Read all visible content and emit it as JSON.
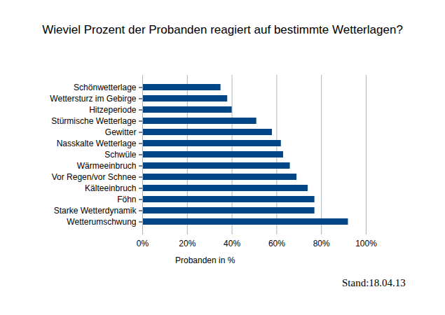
{
  "chart_data": {
    "type": "bar",
    "orientation": "horizontal",
    "title": "Wieviel Prozent der Probanden reagiert auf bestimmte Wetterlagen?",
    "x_label": "Probanden in %",
    "caption": "Stand:18.04.13",
    "categories": [
      "Schönwetterlage",
      "Wettersturz im Gebirge",
      "Hitzeperiode",
      "Stürmische Wetterlage",
      "Gewitter",
      "Nasskalte Wetterlage",
      "Schwüle",
      "Wärmeeinbruch",
      "Vor Regen/vor Schnee",
      "Kälteeinbruch",
      "Föhn",
      "Starke Wetterdynamik",
      "Wetterumschwung"
    ],
    "values": [
      35,
      38,
      40,
      51,
      58,
      62,
      63,
      66,
      69,
      74,
      77,
      77,
      92
    ],
    "color": "#004586",
    "xlim": [
      0,
      100
    ],
    "xticks": [
      {
        "value": 0,
        "label": "0%"
      },
      {
        "value": 20,
        "label": "20%"
      },
      {
        "value": 40,
        "label": "40%"
      },
      {
        "value": 60,
        "label": "60%"
      },
      {
        "value": 80,
        "label": "80%"
      },
      {
        "value": 100,
        "label": "100%"
      }
    ],
    "grid": true
  }
}
